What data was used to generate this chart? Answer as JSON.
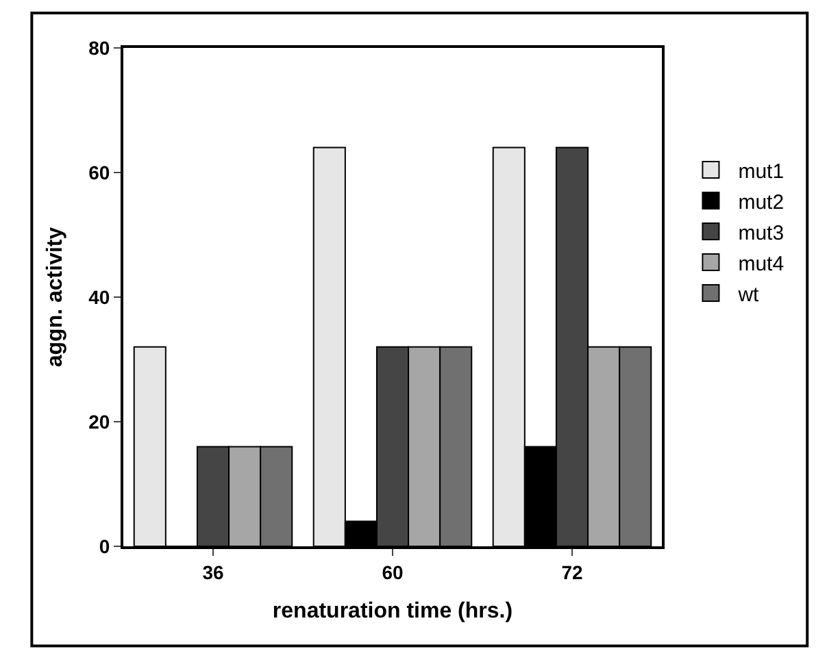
{
  "chart_data": {
    "type": "bar",
    "xlabel": "renaturation time (hrs.)",
    "ylabel": "aggn. activity",
    "categories": [
      "36",
      "60",
      "72"
    ],
    "series": [
      {
        "name": "mut1",
        "color": "#e6e6e6",
        "values": [
          32,
          64,
          64
        ]
      },
      {
        "name": "mut2",
        "color": "#000000",
        "values": [
          0,
          4,
          16
        ]
      },
      {
        "name": "mut3",
        "color": "#454545",
        "values": [
          16,
          32,
          64
        ]
      },
      {
        "name": "mut4",
        "color": "#a6a6a6",
        "values": [
          16,
          32,
          32
        ]
      },
      {
        "name": "wt",
        "color": "#707070",
        "values": [
          16,
          32,
          32
        ]
      }
    ],
    "ylim": [
      0,
      80
    ],
    "yticks": [
      0,
      20,
      40,
      60,
      80
    ],
    "legend": "right"
  }
}
